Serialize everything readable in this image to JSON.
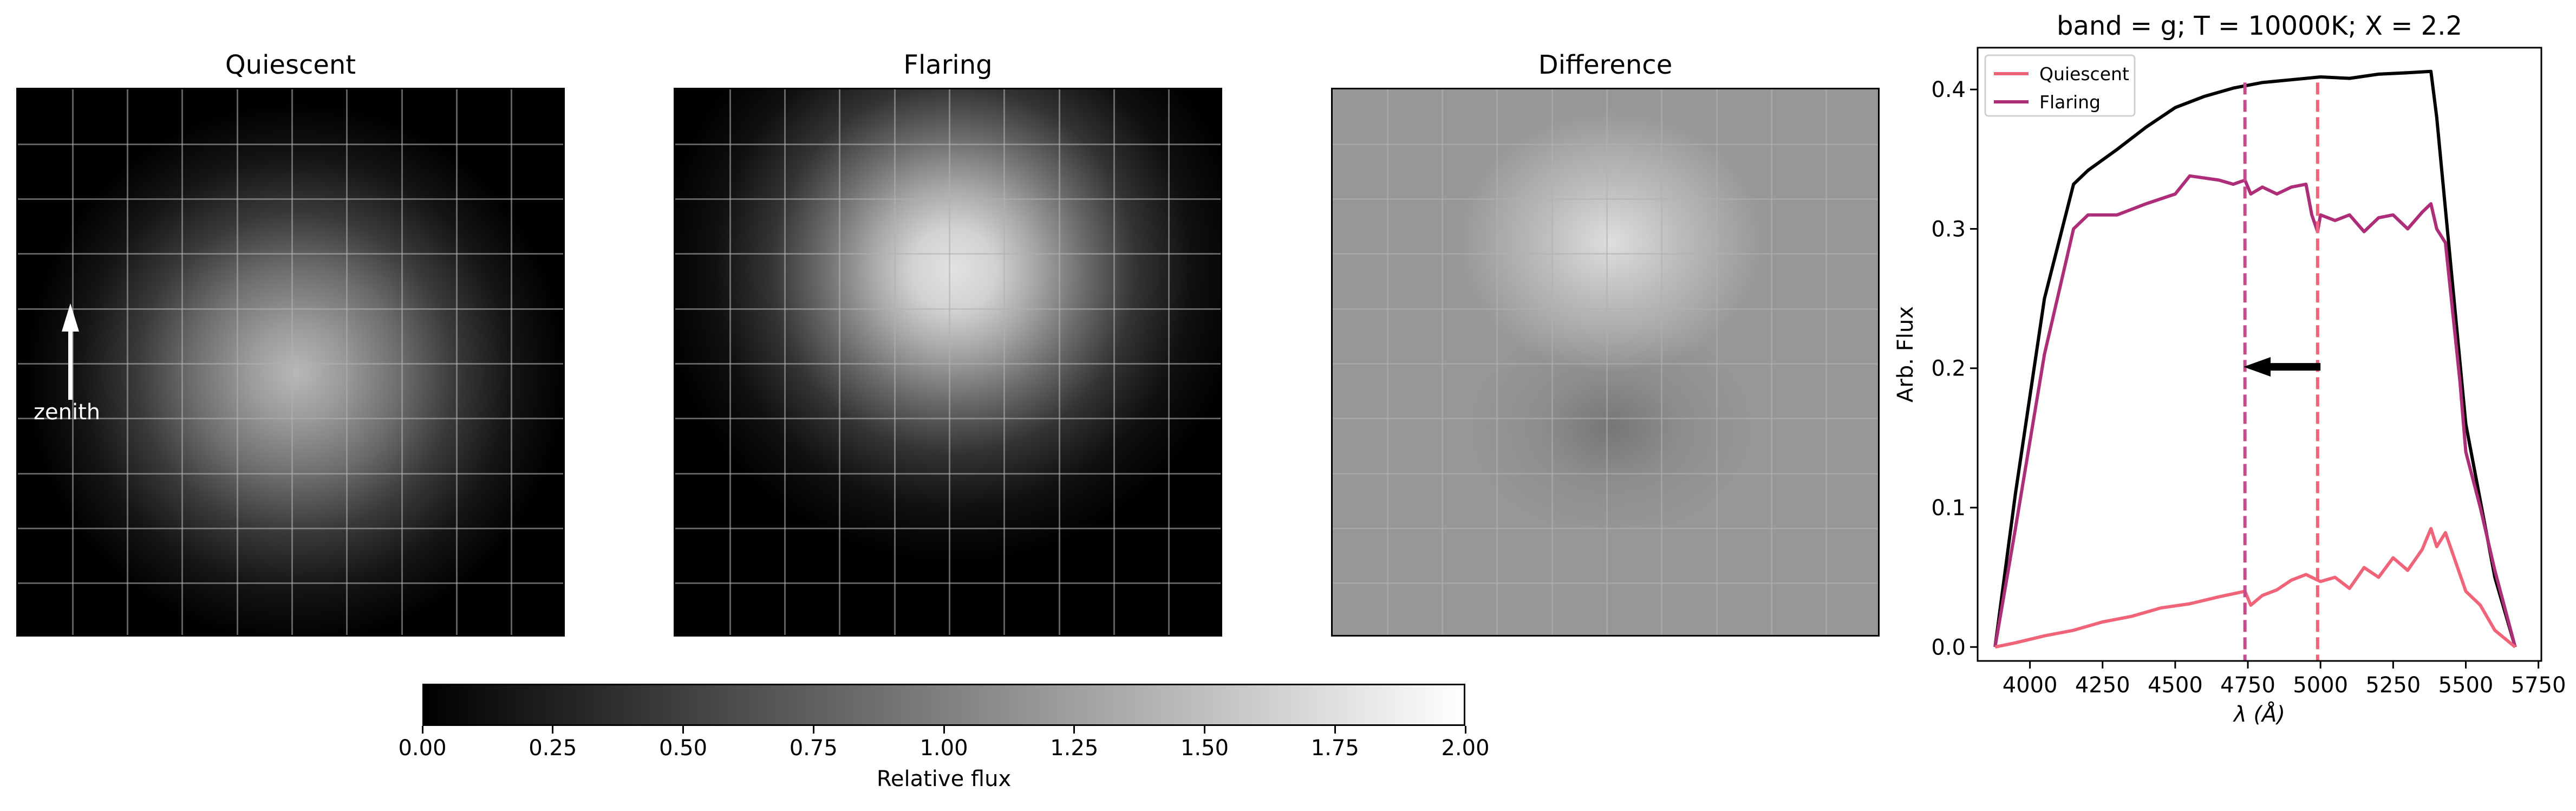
{
  "panels": [
    {
      "title": "Quiescent",
      "annotation": "zenith"
    },
    {
      "title": "Flaring"
    },
    {
      "title": "Difference"
    }
  ],
  "colorbar": {
    "label": "Relative flux",
    "range": [
      0,
      2
    ],
    "ticks": [
      "0.00",
      "0.25",
      "0.50",
      "0.75",
      "1.00",
      "1.25",
      "1.50",
      "1.75",
      "2.00"
    ]
  },
  "chart_data": {
    "type": "line",
    "title": "band = g; T = 10000K; X = 2.2",
    "xlabel": "λ (Å)",
    "ylabel": "Arb. Flux",
    "xlim": [
      3820,
      5760
    ],
    "ylim": [
      -0.01,
      0.43
    ],
    "xticks": [
      4000,
      4250,
      4500,
      4750,
      5000,
      5250,
      5500,
      5750
    ],
    "yticks": [
      0.0,
      0.1,
      0.2,
      0.3,
      0.4
    ],
    "legend": {
      "position": "top-left",
      "entries": [
        "Quiescent",
        "Flaring"
      ]
    },
    "series": [
      {
        "name": "Quiescent",
        "color": "#f0647a",
        "x": [
          3880,
          3950,
          4050,
          4150,
          4250,
          4350,
          4450,
          4550,
          4650,
          4740,
          4760,
          4800,
          4850,
          4900,
          4950,
          5000,
          5050,
          5100,
          5150,
          5200,
          5250,
          5300,
          5350,
          5380,
          5400,
          5430,
          5450,
          5500,
          5550,
          5600,
          5670
        ],
        "y": [
          0.0,
          0.003,
          0.008,
          0.012,
          0.018,
          0.022,
          0.028,
          0.031,
          0.036,
          0.04,
          0.03,
          0.037,
          0.041,
          0.048,
          0.052,
          0.047,
          0.05,
          0.042,
          0.057,
          0.05,
          0.064,
          0.055,
          0.07,
          0.085,
          0.072,
          0.082,
          0.07,
          0.04,
          0.03,
          0.012,
          0.0
        ]
      },
      {
        "name": "Flaring",
        "color": "#ad2d78",
        "x": [
          3880,
          3950,
          4050,
          4150,
          4200,
          4300,
          4400,
          4500,
          4550,
          4650,
          4700,
          4740,
          4760,
          4800,
          4850,
          4900,
          4950,
          4970,
          4990,
          5000,
          5050,
          5100,
          5150,
          5200,
          5250,
          5300,
          5350,
          5380,
          5400,
          5430,
          5450,
          5480,
          5500,
          5550,
          5600,
          5670
        ],
        "y": [
          0.0,
          0.085,
          0.21,
          0.3,
          0.31,
          0.31,
          0.318,
          0.325,
          0.338,
          0.335,
          0.332,
          0.335,
          0.325,
          0.33,
          0.325,
          0.33,
          0.332,
          0.31,
          0.298,
          0.31,
          0.306,
          0.31,
          0.298,
          0.308,
          0.31,
          0.3,
          0.312,
          0.318,
          0.3,
          0.29,
          0.25,
          0.19,
          0.14,
          0.1,
          0.055,
          0.0
        ]
      },
      {
        "name": "",
        "color": "#000000",
        "x": [
          3880,
          3950,
          4050,
          4150,
          4200,
          4300,
          4400,
          4500,
          4600,
          4700,
          4800,
          4900,
          5000,
          5100,
          5200,
          5300,
          5380,
          5400,
          5450,
          5500,
          5600,
          5670
        ],
        "y": [
          0.0,
          0.11,
          0.25,
          0.332,
          0.342,
          0.357,
          0.373,
          0.387,
          0.395,
          0.401,
          0.405,
          0.407,
          0.409,
          0.408,
          0.411,
          0.412,
          0.413,
          0.38,
          0.27,
          0.16,
          0.05,
          0.0
        ]
      }
    ],
    "vlines": [
      {
        "x": 4740,
        "color": "#c94a8c"
      },
      {
        "x": 4990,
        "color": "#f0647a"
      }
    ],
    "arrow": {
      "from": [
        5000,
        0.201
      ],
      "to": [
        4735,
        0.201
      ]
    }
  }
}
